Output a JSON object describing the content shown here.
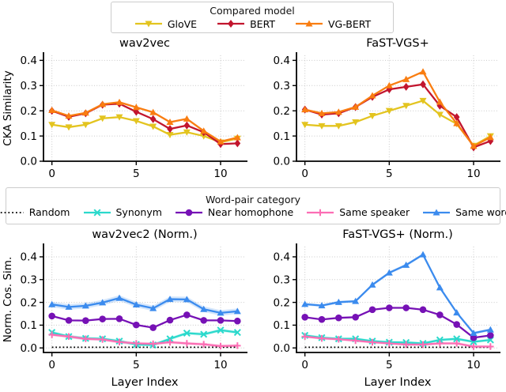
{
  "legends": {
    "compared_model": {
      "title": "Compared model",
      "entries": [
        {
          "label": "GloVE",
          "color": "#E3C41F",
          "marker": "triangle-down",
          "line": "solid"
        },
        {
          "label": "BERT",
          "color": "#C2152E",
          "marker": "diamond",
          "line": "solid"
        },
        {
          "label": "VG-BERT",
          "color": "#F97D11",
          "marker": "triangle-up",
          "line": "solid"
        }
      ]
    },
    "word_pair": {
      "title": "Word-pair category",
      "entries": [
        {
          "label": "Random",
          "color": "#000000",
          "marker": "none",
          "line": "dotted"
        },
        {
          "label": "Synonym",
          "color": "#2BD9CC",
          "marker": "x",
          "line": "solid"
        },
        {
          "label": "Near homophone",
          "color": "#7611B5",
          "marker": "circle",
          "line": "solid"
        },
        {
          "label": "Same speaker",
          "color": "#FC6EB4",
          "marker": "plus",
          "line": "solid"
        },
        {
          "label": "Same word",
          "color": "#3B8BEE",
          "marker": "triangle-up",
          "line": "solid"
        }
      ]
    }
  },
  "chart_data": [
    {
      "type": "line",
      "title": "wav2vec",
      "ylabel": "CKA Similarity",
      "xlabel": "",
      "legend_ref": "compared_model",
      "x": [
        0,
        1,
        2,
        3,
        4,
        5,
        6,
        7,
        8,
        9,
        10,
        11
      ],
      "xticks": [
        0,
        5,
        10
      ],
      "yticks": [
        0.0,
        0.1,
        0.2,
        0.3,
        0.4
      ],
      "xlim": [
        -0.5,
        11.5
      ],
      "ylim": [
        0,
        0.42
      ],
      "grid": true,
      "series": [
        {
          "name": "GloVE",
          "values": [
            0.145,
            0.135,
            0.145,
            0.17,
            0.175,
            0.16,
            0.138,
            0.105,
            0.115,
            0.1,
            0.075,
            0.09
          ]
        },
        {
          "name": "BERT",
          "values": [
            0.2,
            0.176,
            0.19,
            0.224,
            0.228,
            0.196,
            0.167,
            0.128,
            0.142,
            0.115,
            0.068,
            0.071
          ]
        },
        {
          "name": "VG-BERT",
          "values": [
            0.202,
            0.18,
            0.192,
            0.226,
            0.234,
            0.214,
            0.194,
            0.155,
            0.168,
            0.12,
            0.078,
            0.094
          ]
        }
      ]
    },
    {
      "type": "line",
      "title": "FaST-VGS+",
      "ylabel": "",
      "xlabel": "",
      "legend_ref": "compared_model",
      "x": [
        0,
        1,
        2,
        3,
        4,
        5,
        6,
        7,
        8,
        9,
        10,
        11
      ],
      "xticks": [
        0,
        5,
        10
      ],
      "yticks": [
        0.0,
        0.1,
        0.2,
        0.3,
        0.4
      ],
      "xlim": [
        -0.5,
        11.5
      ],
      "ylim": [
        0,
        0.42
      ],
      "grid": true,
      "series": [
        {
          "name": "GloVE",
          "values": [
            0.145,
            0.14,
            0.14,
            0.155,
            0.18,
            0.2,
            0.22,
            0.24,
            0.185,
            0.148,
            0.062,
            0.1
          ]
        },
        {
          "name": "BERT",
          "values": [
            0.205,
            0.185,
            0.19,
            0.215,
            0.255,
            0.285,
            0.295,
            0.305,
            0.22,
            0.175,
            0.055,
            0.08
          ]
        },
        {
          "name": "VG-BERT",
          "values": [
            0.205,
            0.19,
            0.195,
            0.215,
            0.26,
            0.3,
            0.325,
            0.355,
            0.235,
            0.15,
            0.06,
            0.095
          ]
        }
      ]
    },
    {
      "type": "line",
      "title": "wav2vec2 (Norm.)",
      "ylabel": "Norm. Cos. Sim.",
      "xlabel": "Layer Index",
      "legend_ref": "word_pair",
      "x": [
        0,
        1,
        2,
        3,
        4,
        5,
        6,
        7,
        8,
        9,
        10,
        11
      ],
      "xticks": [
        0,
        5,
        10
      ],
      "yticks": [
        0.0,
        0.1,
        0.2,
        0.3,
        0.4
      ],
      "xlim": [
        -0.5,
        11.5
      ],
      "ylim": [
        -0.02,
        0.445
      ],
      "grid": true,
      "series": [
        {
          "name": "Random",
          "values": [
            0.003,
            0.003,
            0.003,
            0.003,
            0.003,
            0.003,
            0.003,
            0.003,
            0.003,
            0.003,
            0.003,
            0.003
          ]
        },
        {
          "name": "Synonym",
          "values": [
            0.068,
            0.05,
            0.042,
            0.04,
            0.03,
            0.015,
            0.013,
            0.04,
            0.065,
            0.06,
            0.078,
            0.068
          ],
          "band": 0.007
        },
        {
          "name": "Same speaker",
          "values": [
            0.058,
            0.05,
            0.04,
            0.037,
            0.026,
            0.02,
            0.018,
            0.025,
            0.02,
            0.016,
            0.008,
            0.01
          ],
          "band": 0.007
        },
        {
          "name": "Near homophone",
          "values": [
            0.14,
            0.121,
            0.12,
            0.127,
            0.128,
            0.101,
            0.089,
            0.122,
            0.145,
            0.121,
            0.121,
            0.118
          ]
        },
        {
          "name": "Same word",
          "values": [
            0.191,
            0.18,
            0.185,
            0.199,
            0.219,
            0.19,
            0.174,
            0.214,
            0.213,
            0.17,
            0.154,
            0.161
          ],
          "band": 0.012
        }
      ]
    },
    {
      "type": "line",
      "title": "FaST-VGS+ (Norm.)",
      "ylabel": "",
      "xlabel": "Layer Index",
      "legend_ref": "word_pair",
      "x": [
        0,
        1,
        2,
        3,
        4,
        5,
        6,
        7,
        8,
        9,
        10,
        11
      ],
      "xticks": [
        0,
        5,
        10
      ],
      "yticks": [
        0.0,
        0.1,
        0.2,
        0.3,
        0.4
      ],
      "xlim": [
        -0.5,
        11.5
      ],
      "ylim": [
        -0.02,
        0.445
      ],
      "grid": true,
      "series": [
        {
          "name": "Random",
          "values": [
            0.003,
            0.003,
            0.003,
            0.003,
            0.003,
            0.003,
            0.003,
            0.003,
            0.003,
            0.003,
            0.003,
            0.003
          ]
        },
        {
          "name": "Synonym",
          "values": [
            0.055,
            0.045,
            0.04,
            0.04,
            0.03,
            0.025,
            0.024,
            0.02,
            0.035,
            0.04,
            0.027,
            0.035
          ],
          "band": 0.006
        },
        {
          "name": "Same speaker",
          "values": [
            0.05,
            0.042,
            0.038,
            0.032,
            0.025,
            0.02,
            0.015,
            0.015,
            0.02,
            0.02,
            0.006,
            0.006
          ],
          "band": 0.006
        },
        {
          "name": "Near homophone",
          "values": [
            0.135,
            0.125,
            0.132,
            0.135,
            0.168,
            0.176,
            0.176,
            0.168,
            0.145,
            0.103,
            0.045,
            0.055
          ]
        },
        {
          "name": "Same word",
          "values": [
            0.192,
            0.186,
            0.201,
            0.205,
            0.277,
            0.33,
            0.364,
            0.41,
            0.265,
            0.155,
            0.065,
            0.08
          ],
          "band": 0.006
        }
      ]
    }
  ]
}
